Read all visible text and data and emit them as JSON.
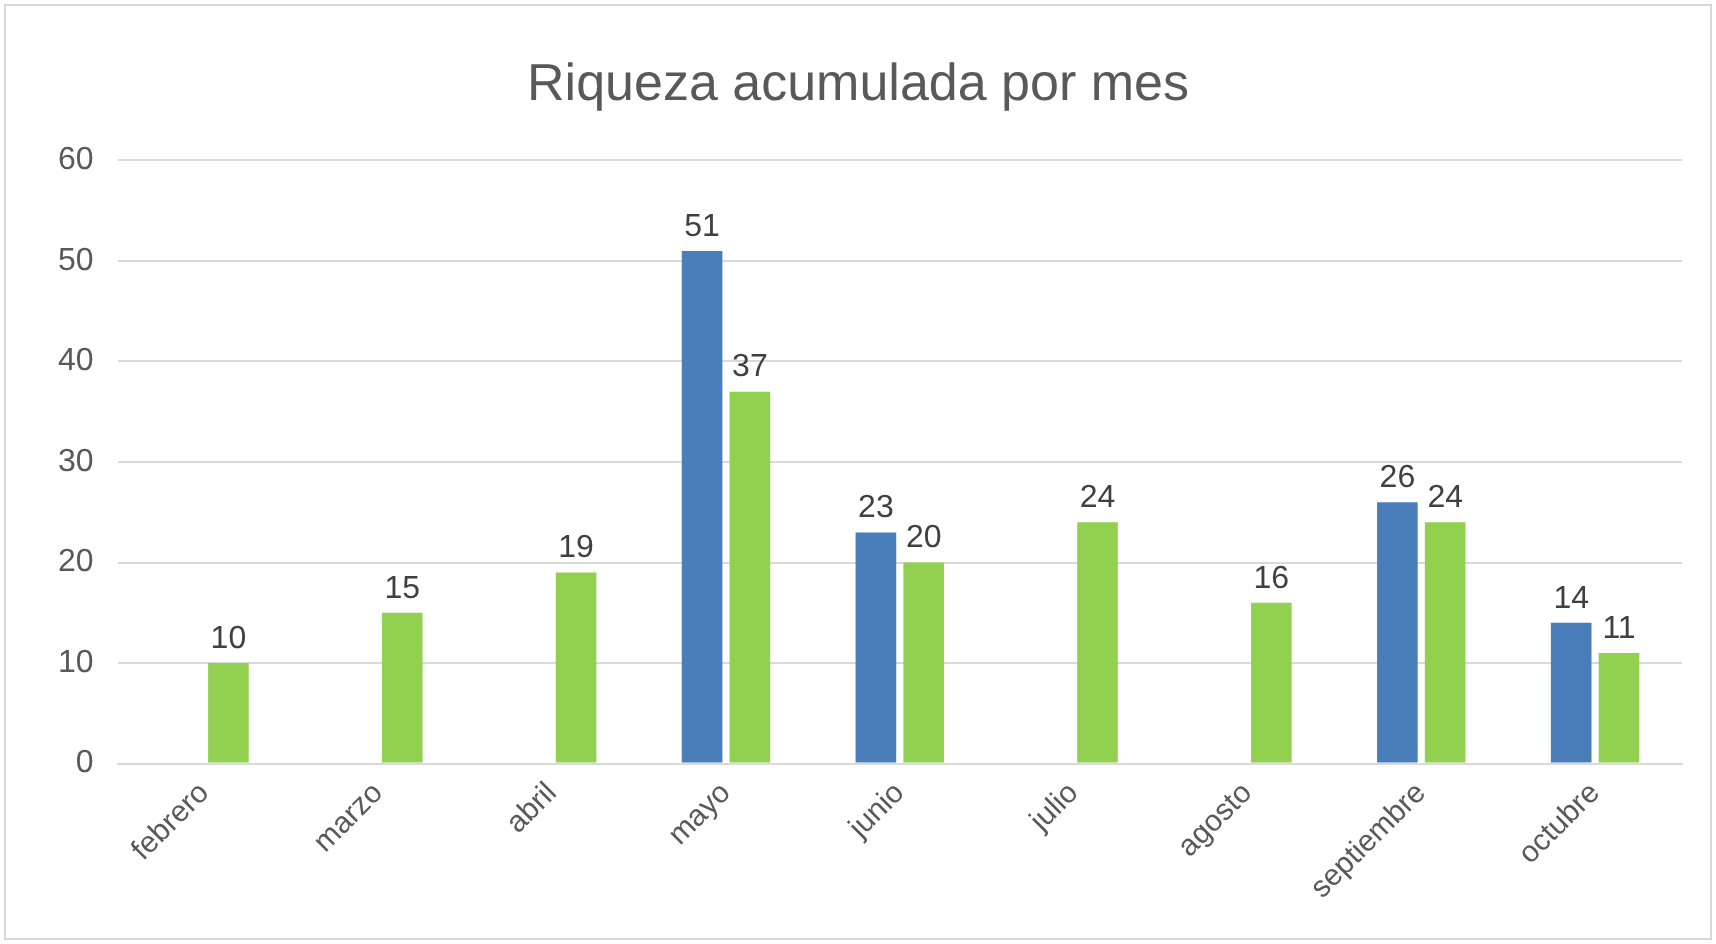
{
  "chart_data": {
    "type": "bar",
    "title": "Riqueza acumulada por mes",
    "categories": [
      "febrero",
      "marzo",
      "abril",
      "mayo",
      "junio",
      "julio",
      "agosto",
      "septiembre",
      "octubre"
    ],
    "series": [
      {
        "color": "#4a7ebb",
        "values": [
          null,
          null,
          null,
          51,
          23,
          null,
          null,
          26,
          14
        ]
      },
      {
        "color": "#92d050",
        "values": [
          10,
          15,
          19,
          37,
          20,
          24,
          16,
          24,
          11
        ]
      }
    ],
    "ylim": [
      0,
      60
    ],
    "yticks": [
      0,
      10,
      20,
      30,
      40,
      50,
      60
    ],
    "grid": "y",
    "data_labels": true
  }
}
